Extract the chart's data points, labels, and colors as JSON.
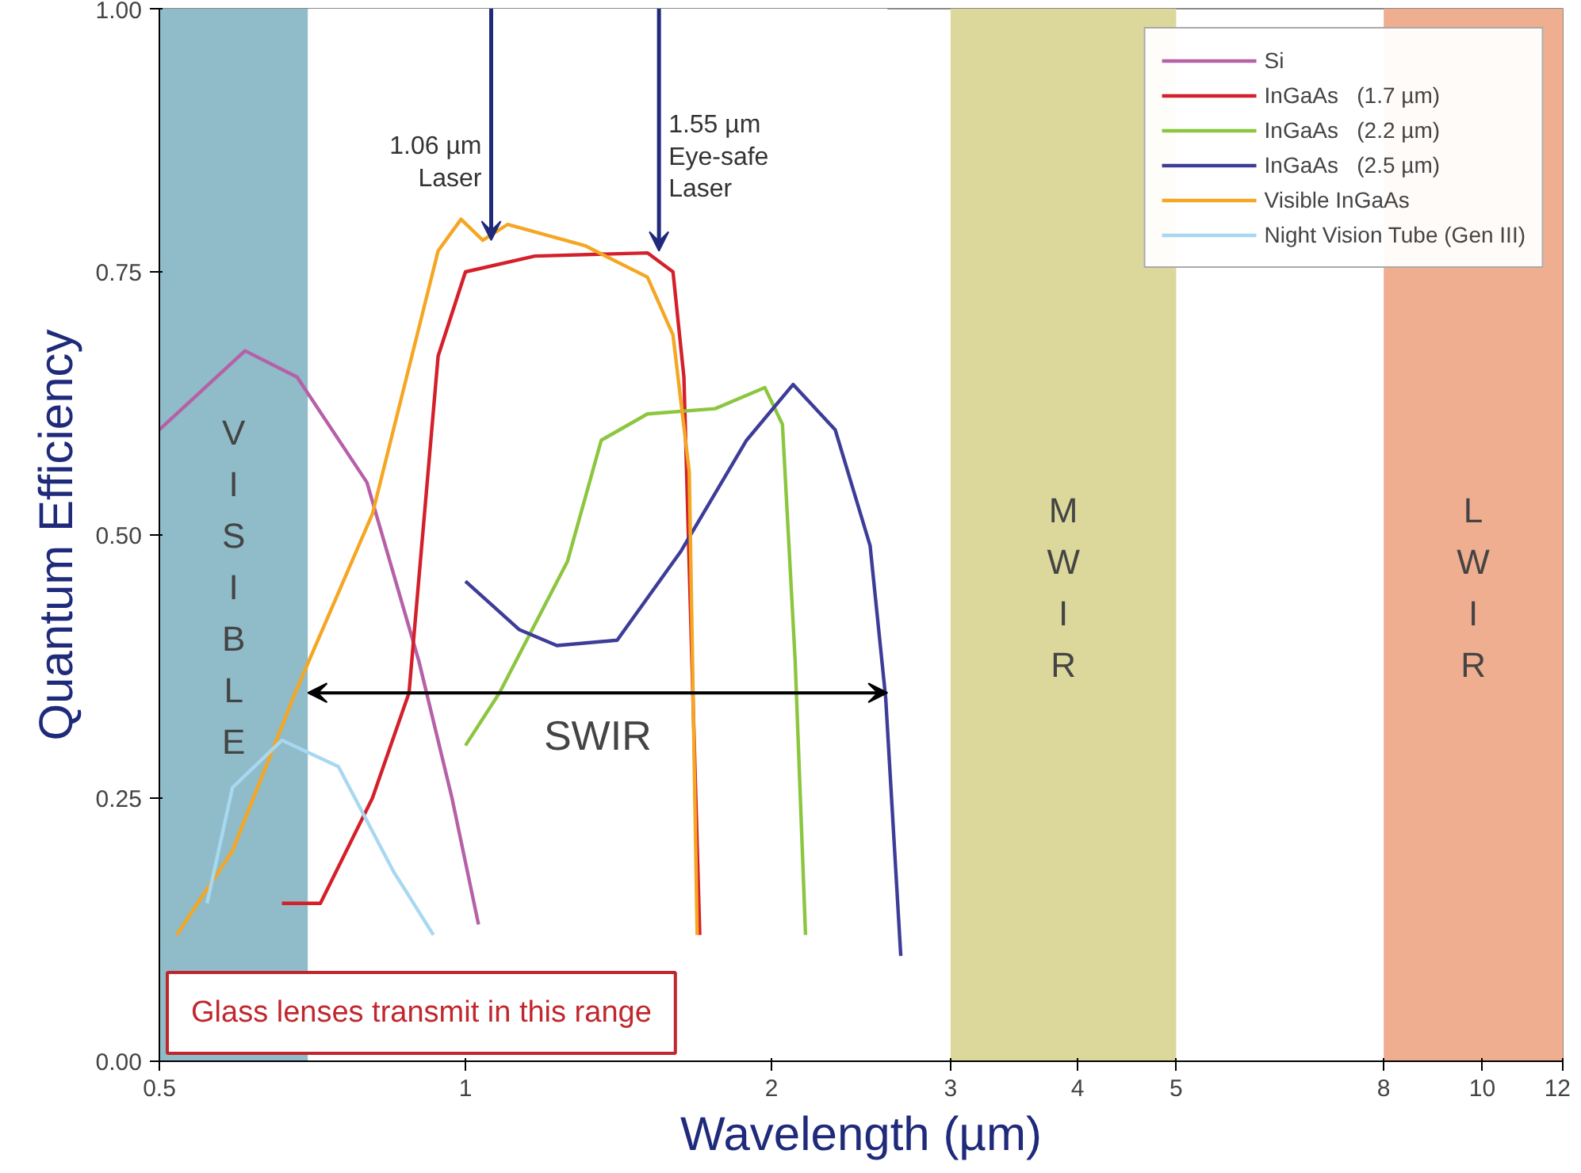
{
  "chart_data": {
    "type": "line",
    "xlabel": "Wavelength (µm)",
    "ylabel": "Quantum Efficiency",
    "log": "x",
    "legend": "top right",
    "xlim": [
      0.5,
      12
    ],
    "ylim": [
      0,
      1
    ],
    "xticks": [
      0.5,
      1,
      2,
      3,
      4,
      5,
      8,
      10,
      12
    ],
    "yticks": [
      {
        "value": 0,
        "label": "0.00"
      },
      {
        "value": 0.25,
        "label": "0.25"
      },
      {
        "value": 0.5,
        "label": "0.50"
      },
      {
        "value": 0.75,
        "label": "0.75"
      },
      {
        "value": 1,
        "label": "1.00"
      }
    ],
    "bands": [
      {
        "axis": "x",
        "from": 0.5,
        "to": 0.7,
        "label": "VISIBLE",
        "color": "#8fbcc8"
      },
      {
        "axis": "x",
        "from": 3,
        "to": 5,
        "label": "MWIR",
        "color": "#dcd79a"
      },
      {
        "axis": "x",
        "from": 8,
        "to": 12,
        "label": "LWIR",
        "color": "#efae90"
      },
      {
        "axis": "x",
        "from": 0.7,
        "to": 2.6,
        "label": "SWIR",
        "color": "#ffffff"
      }
    ],
    "annotations": [
      {
        "text": "1.06 µm\nLaser",
        "x": 1.06,
        "y": 0.78
      },
      {
        "text": "1.55 µm\nEye-safe\nLaser",
        "x": 1.55,
        "y": 0.77
      },
      "Glass lenses transmit in this range"
    ],
    "series": [
      {
        "name": "Si",
        "color": "#b660a8",
        "x": [
          0.5,
          0.607,
          0.683,
          0.8,
          0.9,
          0.97,
          1.03
        ],
        "values": [
          0.6,
          0.675,
          0.65,
          0.55,
          0.38,
          0.25,
          0.13
        ]
      },
      {
        "name": "InGaAs   (1.7 µm)",
        "color": "#d4202a",
        "x": [
          0.66,
          0.72,
          0.81,
          0.88,
          0.94,
          1.0,
          1.17,
          1.51,
          1.6,
          1.64,
          1.67,
          1.7
        ],
        "values": [
          0.15,
          0.15,
          0.25,
          0.35,
          0.67,
          0.75,
          0.765,
          0.768,
          0.75,
          0.65,
          0.38,
          0.12
        ]
      },
      {
        "name": "InGaAs   (2.2 µm)",
        "color": "#8cc63f",
        "x": [
          1.0,
          1.08,
          1.26,
          1.36,
          1.51,
          1.76,
          1.97,
          2.05,
          2.11,
          2.16
        ],
        "values": [
          0.3,
          0.35,
          0.475,
          0.59,
          0.615,
          0.62,
          0.64,
          0.605,
          0.38,
          0.12
        ]
      },
      {
        "name": "InGaAs   (2.5 µm)",
        "color": "#3d3d99",
        "x": [
          1.0,
          1.13,
          1.23,
          1.41,
          1.63,
          1.89,
          2.1,
          2.31,
          2.5,
          2.59,
          2.68
        ],
        "values": [
          0.456,
          0.41,
          0.395,
          0.4,
          0.485,
          0.59,
          0.643,
          0.6,
          0.49,
          0.345,
          0.1
        ]
      },
      {
        "name": "Visible InGaAs",
        "color": "#f5a623",
        "x": [
          0.52,
          0.59,
          0.68,
          0.81,
          0.94,
          0.99,
          1.04,
          1.1,
          1.31,
          1.51,
          1.6,
          1.66,
          1.69
        ],
        "values": [
          0.12,
          0.2,
          0.35,
          0.52,
          0.77,
          0.8,
          0.78,
          0.795,
          0.775,
          0.745,
          0.69,
          0.56,
          0.12
        ]
      },
      {
        "name": "Night Vision Tube (Gen III)",
        "color": "#a8d8f0",
        "x": [
          0.557,
          0.59,
          0.66,
          0.75,
          0.85,
          0.93
        ],
        "values": [
          0.15,
          0.26,
          0.305,
          0.28,
          0.18,
          0.12
        ]
      }
    ]
  }
}
